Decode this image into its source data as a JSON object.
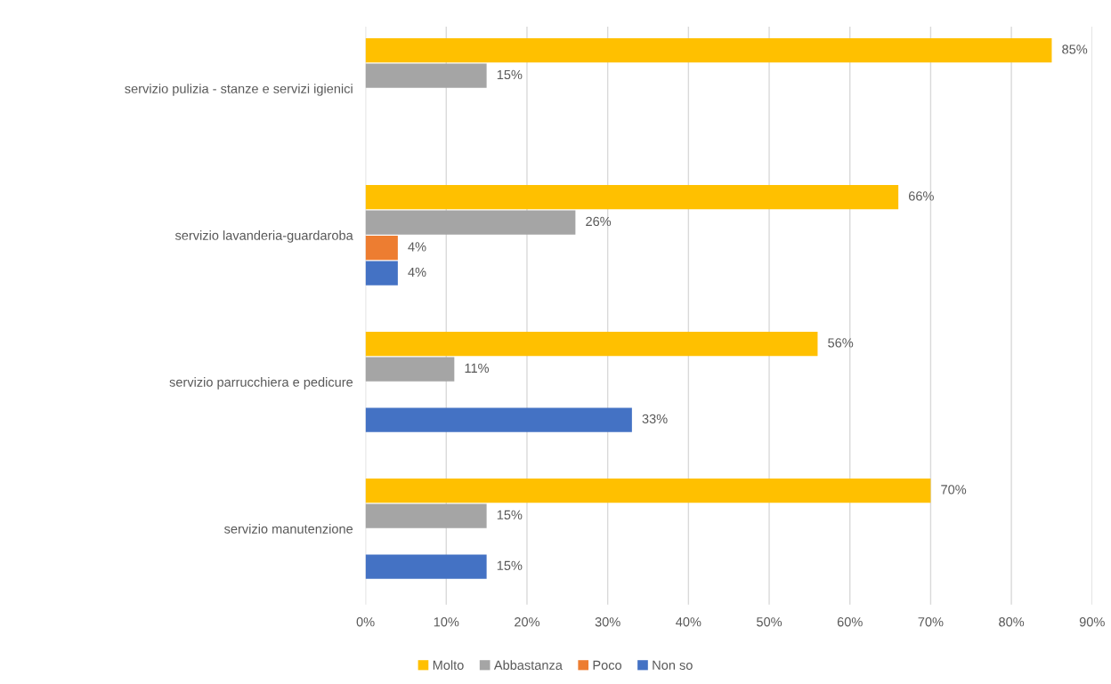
{
  "chart_data": {
    "type": "bar",
    "orientation": "horizontal",
    "categories": [
      "servizio pulizia - stanze e servizi igienici",
      "servizio lavanderia-guardaroba",
      "servizio parrucchiera e pedicure",
      "servizio manutenzione"
    ],
    "series": [
      {
        "name": "Molto",
        "color": "#ffc000",
        "values": [
          85,
          66,
          56,
          70
        ],
        "value_labels": [
          "85%",
          "66%",
          "56%",
          "70%"
        ]
      },
      {
        "name": "Abbastanza",
        "color": "#a5a5a5",
        "values": [
          15,
          26,
          11,
          15
        ],
        "value_labels": [
          "15%",
          "26%",
          "11%",
          "15%"
        ]
      },
      {
        "name": "Poco",
        "color": "#ed7d31",
        "values": [
          null,
          4,
          null,
          null
        ],
        "value_labels": [
          null,
          "4%",
          null,
          null
        ]
      },
      {
        "name": "Non so",
        "color": "#4472c4",
        "values": [
          null,
          4,
          33,
          15
        ],
        "value_labels": [
          null,
          "4%",
          "33%",
          "15%"
        ]
      }
    ],
    "xlim": [
      0,
      90
    ],
    "xticks": [
      {
        "value": 0,
        "label": "0%"
      },
      {
        "value": 10,
        "label": "10%"
      },
      {
        "value": 20,
        "label": "20%"
      },
      {
        "value": 30,
        "label": "30%"
      },
      {
        "value": 40,
        "label": "40%"
      },
      {
        "value": 50,
        "label": "50%"
      },
      {
        "value": 60,
        "label": "60%"
      },
      {
        "value": 70,
        "label": "70%"
      },
      {
        "value": 80,
        "label": "80%"
      },
      {
        "value": 90,
        "label": "90%"
      }
    ],
    "grid": "x",
    "legend": "bottom"
  }
}
